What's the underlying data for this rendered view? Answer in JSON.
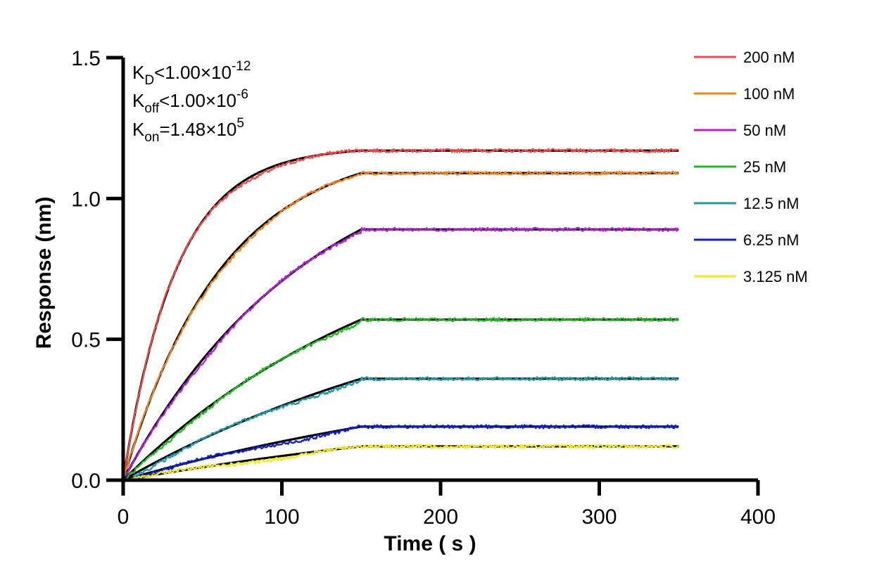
{
  "chart_data": {
    "type": "line",
    "title": "",
    "xlabel": "Time ( s )",
    "ylabel": "Response (nm)",
    "xlim": [
      0,
      400
    ],
    "ylim": [
      0,
      1.5
    ],
    "x_ticks": [
      0,
      100,
      200,
      300,
      400
    ],
    "x_tick_labels": [
      "0",
      "100",
      "200",
      "300",
      "400"
    ],
    "y_ticks": [
      0,
      0.5,
      1.0,
      1.5
    ],
    "y_tick_labels": [
      "0.0",
      "0.5",
      "1.0",
      "1.5"
    ],
    "grid": false,
    "legend_position": "top-right",
    "association_end": 150,
    "x_end": 350,
    "fit_color": "#000000",
    "annotations": {
      "kd": {
        "sym": "K",
        "sub": "D",
        "rel": "<1.00×10",
        "sup": "-12"
      },
      "koff": {
        "sym": "K",
        "sub": "off",
        "rel": "<1.00×10",
        "sup": "-6"
      },
      "kon": {
        "sym": "K",
        "sub": "on",
        "rel": "=1.48×10",
        "sup": "5"
      }
    },
    "series": [
      {
        "name": "200 nM",
        "color": "#F04A4A",
        "plateau": 1.17,
        "kobs": 0.03,
        "x": [
          0,
          20,
          40,
          60,
          100,
          150,
          350
        ],
        "y": [
          0,
          0.53,
          0.82,
          0.98,
          1.12,
          1.17,
          1.17
        ]
      },
      {
        "name": "100 nM",
        "color": "#F0841E",
        "plateau": 1.09,
        "kobs": 0.016,
        "x": [
          0,
          20,
          40,
          60,
          100,
          150,
          350
        ],
        "y": [
          0,
          0.3,
          0.53,
          0.7,
          0.93,
          1.09,
          1.09
        ]
      },
      {
        "name": "50 nM",
        "color": "#B322D6",
        "plateau": 0.89,
        "kobs": 0.0085,
        "x": [
          0,
          20,
          40,
          60,
          100,
          150,
          350
        ],
        "y": [
          0,
          0.14,
          0.27,
          0.39,
          0.59,
          0.89,
          0.89
        ]
      },
      {
        "name": "25 nM",
        "color": "#21B821",
        "plateau": 0.57,
        "kobs": 0.0055,
        "x": [
          0,
          20,
          40,
          60,
          100,
          150,
          350
        ],
        "y": [
          0,
          0.08,
          0.16,
          0.24,
          0.38,
          0.57,
          0.57
        ]
      },
      {
        "name": "12.5 nM",
        "color": "#1F9AA6",
        "plateau": 0.36,
        "kobs": 0.0042,
        "x": [
          0,
          20,
          40,
          60,
          100,
          150,
          350
        ],
        "y": [
          0,
          0.05,
          0.1,
          0.15,
          0.24,
          0.36,
          0.36
        ]
      },
      {
        "name": "6.25 nM",
        "color": "#1020CC",
        "plateau": 0.19,
        "kobs": 0.0035,
        "x": [
          0,
          20,
          40,
          60,
          100,
          150,
          350
        ],
        "y": [
          0,
          0.03,
          0.05,
          0.08,
          0.13,
          0.19,
          0.19
        ]
      },
      {
        "name": "3.125 nM",
        "color": "#F2EA1A",
        "plateau": 0.12,
        "kobs": 0.003,
        "x": [
          0,
          20,
          40,
          60,
          100,
          150,
          350
        ],
        "y": [
          0,
          0.02,
          0.03,
          0.05,
          0.08,
          0.12,
          0.12
        ]
      }
    ]
  }
}
